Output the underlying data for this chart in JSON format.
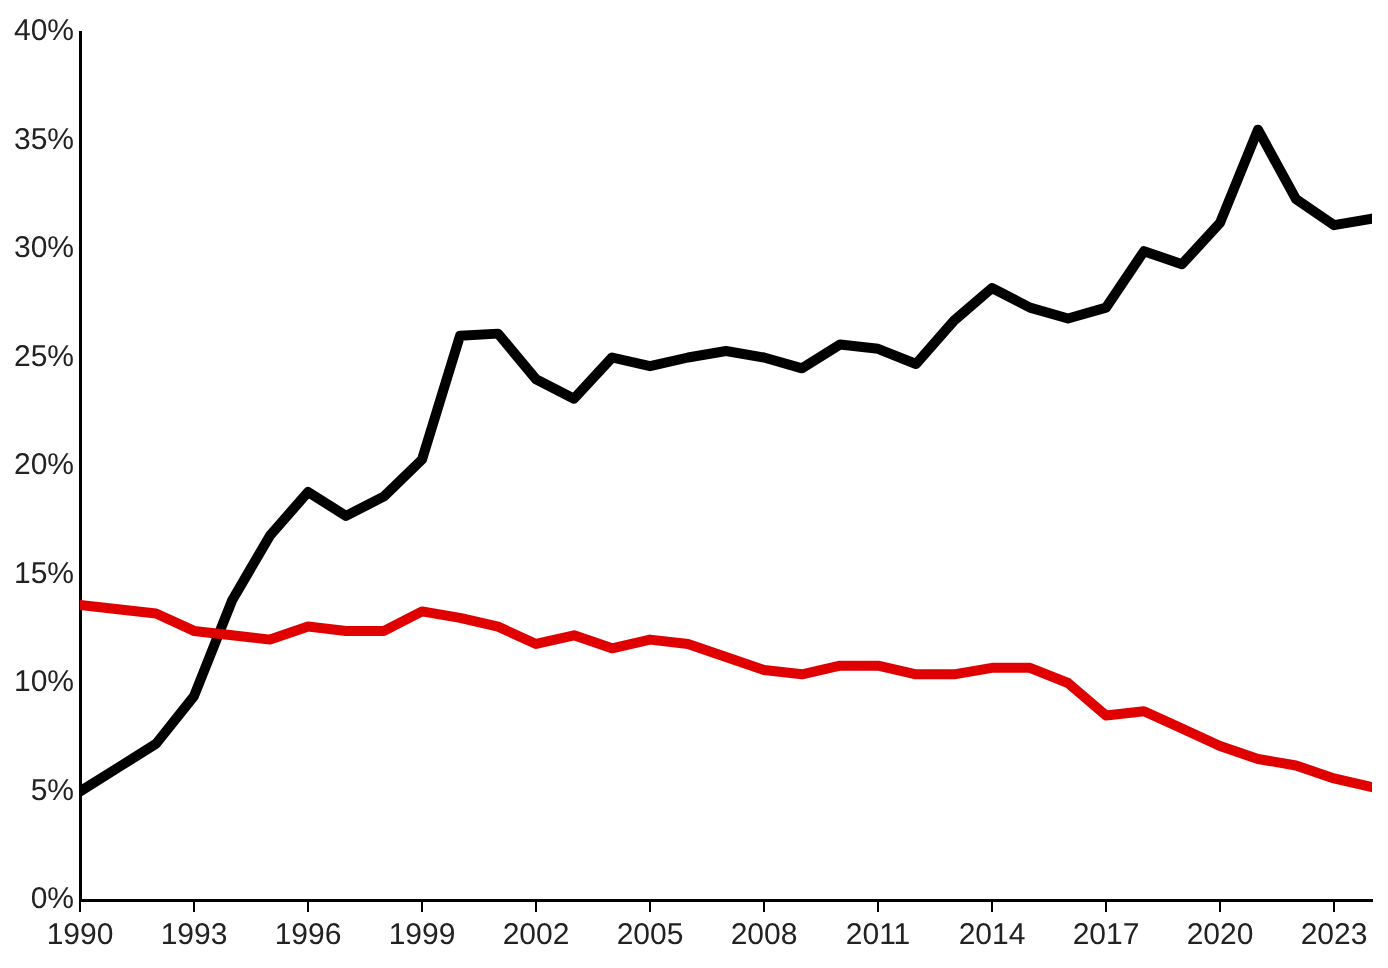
{
  "chart_data": {
    "type": "line",
    "x": [
      1990,
      1991,
      1992,
      1993,
      1994,
      1995,
      1996,
      1997,
      1998,
      1999,
      2000,
      2001,
      2002,
      2003,
      2004,
      2005,
      2006,
      2007,
      2008,
      2009,
      2010,
      2011,
      2012,
      2013,
      2014,
      2015,
      2016,
      2017,
      2018,
      2019,
      2020,
      2021,
      2022,
      2023,
      2024
    ],
    "series": [
      {
        "color": "#e00000",
        "values": [
          13.6,
          13.4,
          13.2,
          12.4,
          12.2,
          12.0,
          12.6,
          12.4,
          12.4,
          13.3,
          13.0,
          12.6,
          11.8,
          12.2,
          11.6,
          12.0,
          11.8,
          11.2,
          10.6,
          10.4,
          10.8,
          10.8,
          10.4,
          10.4,
          10.7,
          10.7,
          10.0,
          8.5,
          8.7,
          7.9,
          7.1,
          6.5,
          6.2,
          5.6,
          5.2
        ]
      },
      {
        "color": "#000000",
        "values": [
          5.0,
          6.1,
          7.2,
          9.4,
          13.8,
          16.8,
          18.8,
          17.7,
          18.6,
          20.3,
          26.0,
          26.1,
          24.0,
          23.1,
          25.0,
          24.6,
          25.0,
          25.3,
          25.0,
          24.5,
          25.6,
          25.4,
          24.7,
          26.7,
          28.2,
          27.3,
          26.8,
          27.3,
          29.9,
          29.3,
          31.2,
          35.5,
          32.3,
          31.1,
          31.4
        ]
      }
    ],
    "xlim": [
      1990,
      2024
    ],
    "xticks": [
      1990,
      1993,
      1996,
      1999,
      2002,
      2005,
      2008,
      2011,
      2014,
      2017,
      2020,
      2023
    ],
    "ylim": [
      0,
      40
    ],
    "yticks": [
      {
        "value": 0,
        "label": "0%"
      },
      {
        "value": 5,
        "label": "5%"
      },
      {
        "value": 10,
        "label": "10%"
      },
      {
        "value": 15,
        "label": "15%"
      },
      {
        "value": 20,
        "label": "20%"
      },
      {
        "value": 25,
        "label": "25%"
      },
      {
        "value": 30,
        "label": "30%"
      },
      {
        "value": 35,
        "label": "35%"
      },
      {
        "value": 40,
        "label": "40%"
      }
    ],
    "grid": false,
    "marker": "none",
    "line_style": "solid"
  }
}
